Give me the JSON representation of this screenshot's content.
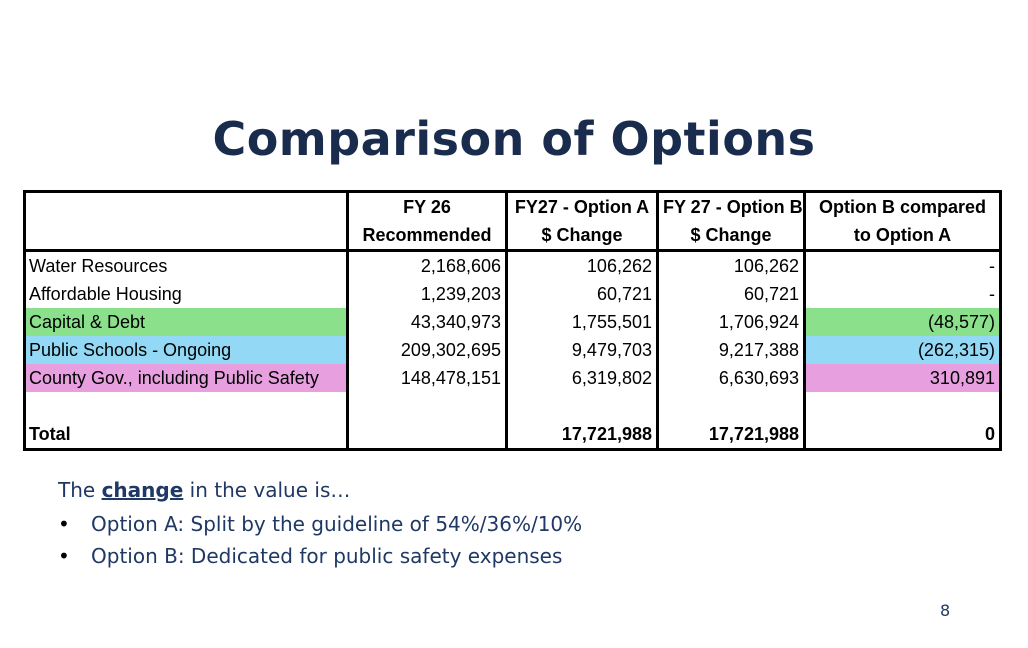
{
  "slide": {
    "title": "Comparison of Options",
    "page_number": "8"
  },
  "table": {
    "headers": [
      {
        "line1": "",
        "line2": ""
      },
      {
        "line1": "FY 26",
        "line2": "Recommended"
      },
      {
        "line1": "FY27 - Option A",
        "line2": "$ Change"
      },
      {
        "line1": "FY 27 - Option B",
        "line2": "$ Change"
      },
      {
        "line1": "Option B compared",
        "line2": "to Option A"
      }
    ],
    "rows": [
      {
        "label": "Water Resources",
        "fy26": "2,168,606",
        "opt_a": "106,262",
        "opt_b": "106,262",
        "diff": "-",
        "label_color": "",
        "diff_color": ""
      },
      {
        "label": "Affordable Housing",
        "fy26": "1,239,203",
        "opt_a": "60,721",
        "opt_b": "60,721",
        "diff": "-",
        "label_color": "",
        "diff_color": ""
      },
      {
        "label": "Capital & Debt",
        "fy26": "43,340,973",
        "opt_a": "1,755,501",
        "opt_b": "1,706,924",
        "diff": "(48,577)",
        "label_color": "#8be08b",
        "diff_color": "#8be08b"
      },
      {
        "label": "Public Schools - Ongoing",
        "fy26": "209,302,695",
        "opt_a": "9,479,703",
        "opt_b": "9,217,388",
        "diff": "(262,315)",
        "label_color": "#93d9f5",
        "diff_color": "#93d9f5"
      },
      {
        "label": "County Gov., including Public Safety",
        "fy26": "148,478,151",
        "opt_a": "6,319,802",
        "opt_b": "6,630,693",
        "diff": "310,891",
        "label_color": "#e79fe0",
        "diff_color": "#e79fe0"
      }
    ],
    "total": {
      "label": "Total",
      "fy26": "",
      "opt_a": "17,721,988",
      "opt_b": "17,721,988",
      "diff": "0"
    }
  },
  "notes": {
    "intro_before": "The ",
    "intro_emphasis": "change",
    "intro_after": " in the value is…",
    "bullets": [
      "Option A: Split by the guideline of 54%/36%/10%",
      "Option B: Dedicated for public safety expenses"
    ]
  },
  "colors": {
    "title": "#1a2c4d",
    "notes_text": "#1f3864",
    "capital_debt": "#8be08b",
    "public_schools": "#93d9f5",
    "county_gov": "#e79fe0"
  }
}
